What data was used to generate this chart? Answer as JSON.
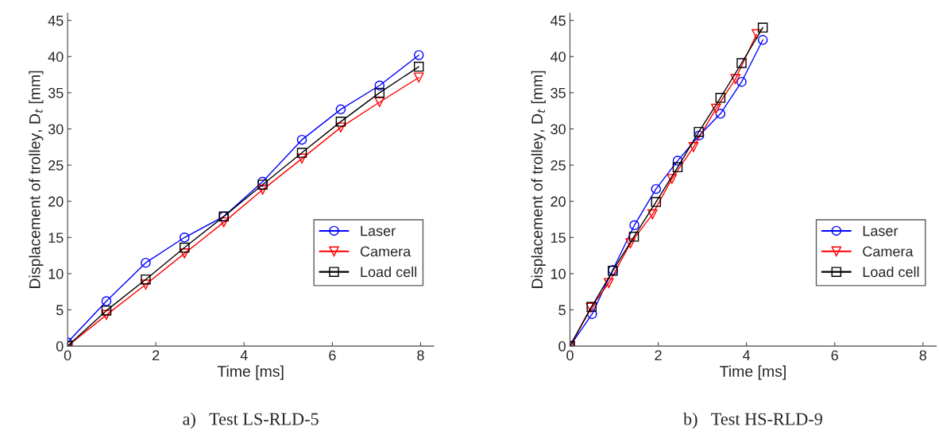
{
  "chart_data": [
    {
      "type": "line",
      "xlabel": "Time [ms]",
      "ylabel": "Displacement of trolley, D$_{t}$ [mm]",
      "xlim": [
        0,
        8.3
      ],
      "ylim": [
        0,
        46
      ],
      "xticks": [
        0,
        2,
        4,
        6,
        8
      ],
      "yticks": [
        0,
        5,
        10,
        15,
        20,
        25,
        30,
        35,
        40,
        45
      ],
      "grid": false,
      "legend": "bottom right",
      "annotations": [
        "a)   Test LS-RLD-5"
      ],
      "series": [
        {
          "name": "Laser",
          "color": "#0000ff",
          "marker": "circle",
          "x": [
            0,
            0.88,
            1.77,
            2.65,
            3.54,
            4.42,
            5.31,
            6.19,
            7.07,
            7.96
          ],
          "values": [
            0.5,
            6.2,
            11.5,
            15.0,
            17.9,
            22.7,
            28.5,
            32.7,
            36.0,
            40.2
          ]
        },
        {
          "name": "Camera",
          "color": "#ff0000",
          "marker": "triangle",
          "x": [
            0,
            0.88,
            1.77,
            2.65,
            3.54,
            4.42,
            5.31,
            6.19,
            7.07,
            7.96
          ],
          "values": [
            0,
            4.3,
            8.5,
            12.8,
            17.1,
            21.6,
            25.9,
            30.2,
            33.7,
            37.1
          ]
        },
        {
          "name": "Load cell",
          "color": "#000000",
          "marker": "square",
          "x": [
            0,
            0.88,
            1.77,
            2.65,
            3.54,
            4.42,
            5.31,
            6.19,
            7.07,
            7.96
          ],
          "values": [
            0,
            4.9,
            9.2,
            13.6,
            17.9,
            22.3,
            26.7,
            31.0,
            35.0,
            38.6
          ]
        }
      ]
    },
    {
      "type": "line",
      "xlabel": "Time [ms]",
      "ylabel": "Displacement of trolley, D$_{t}$ [mm]",
      "xlim": [
        0,
        8.3
      ],
      "ylim": [
        0,
        46
      ],
      "xticks": [
        0,
        2,
        4,
        6,
        8
      ],
      "yticks": [
        0,
        5,
        10,
        15,
        20,
        25,
        30,
        35,
        40,
        45
      ],
      "grid": false,
      "legend": "bottom right",
      "annotations": [
        "b)   Test HS-RLD-9"
      ],
      "series": [
        {
          "name": "Laser",
          "color": "#0000ff",
          "marker": "circle",
          "x": [
            0,
            0.5,
            0.97,
            1.46,
            1.95,
            2.44,
            2.93,
            3.41,
            3.89,
            4.37
          ],
          "values": [
            0,
            4.4,
            10.5,
            16.7,
            21.7,
            25.6,
            29.1,
            32.1,
            36.5,
            42.3
          ]
        },
        {
          "name": "Camera",
          "color": "#ff0000",
          "marker": "triangle",
          "x": [
            0,
            0.47,
            0.88,
            1.37,
            1.87,
            2.31,
            2.8,
            3.31,
            3.75,
            4.23
          ],
          "values": [
            0,
            5.3,
            8.7,
            14.2,
            18.2,
            23.1,
            27.5,
            32.8,
            36.9,
            43.1
          ]
        },
        {
          "name": "Load cell",
          "color": "#000000",
          "marker": "square",
          "x": [
            0,
            0.49,
            0.97,
            1.45,
            1.95,
            2.44,
            2.92,
            3.41,
            3.89,
            4.37
          ],
          "values": [
            0,
            5.4,
            10.4,
            15.1,
            19.9,
            24.7,
            29.6,
            34.3,
            39.1,
            44.0
          ]
        }
      ]
    }
  ]
}
